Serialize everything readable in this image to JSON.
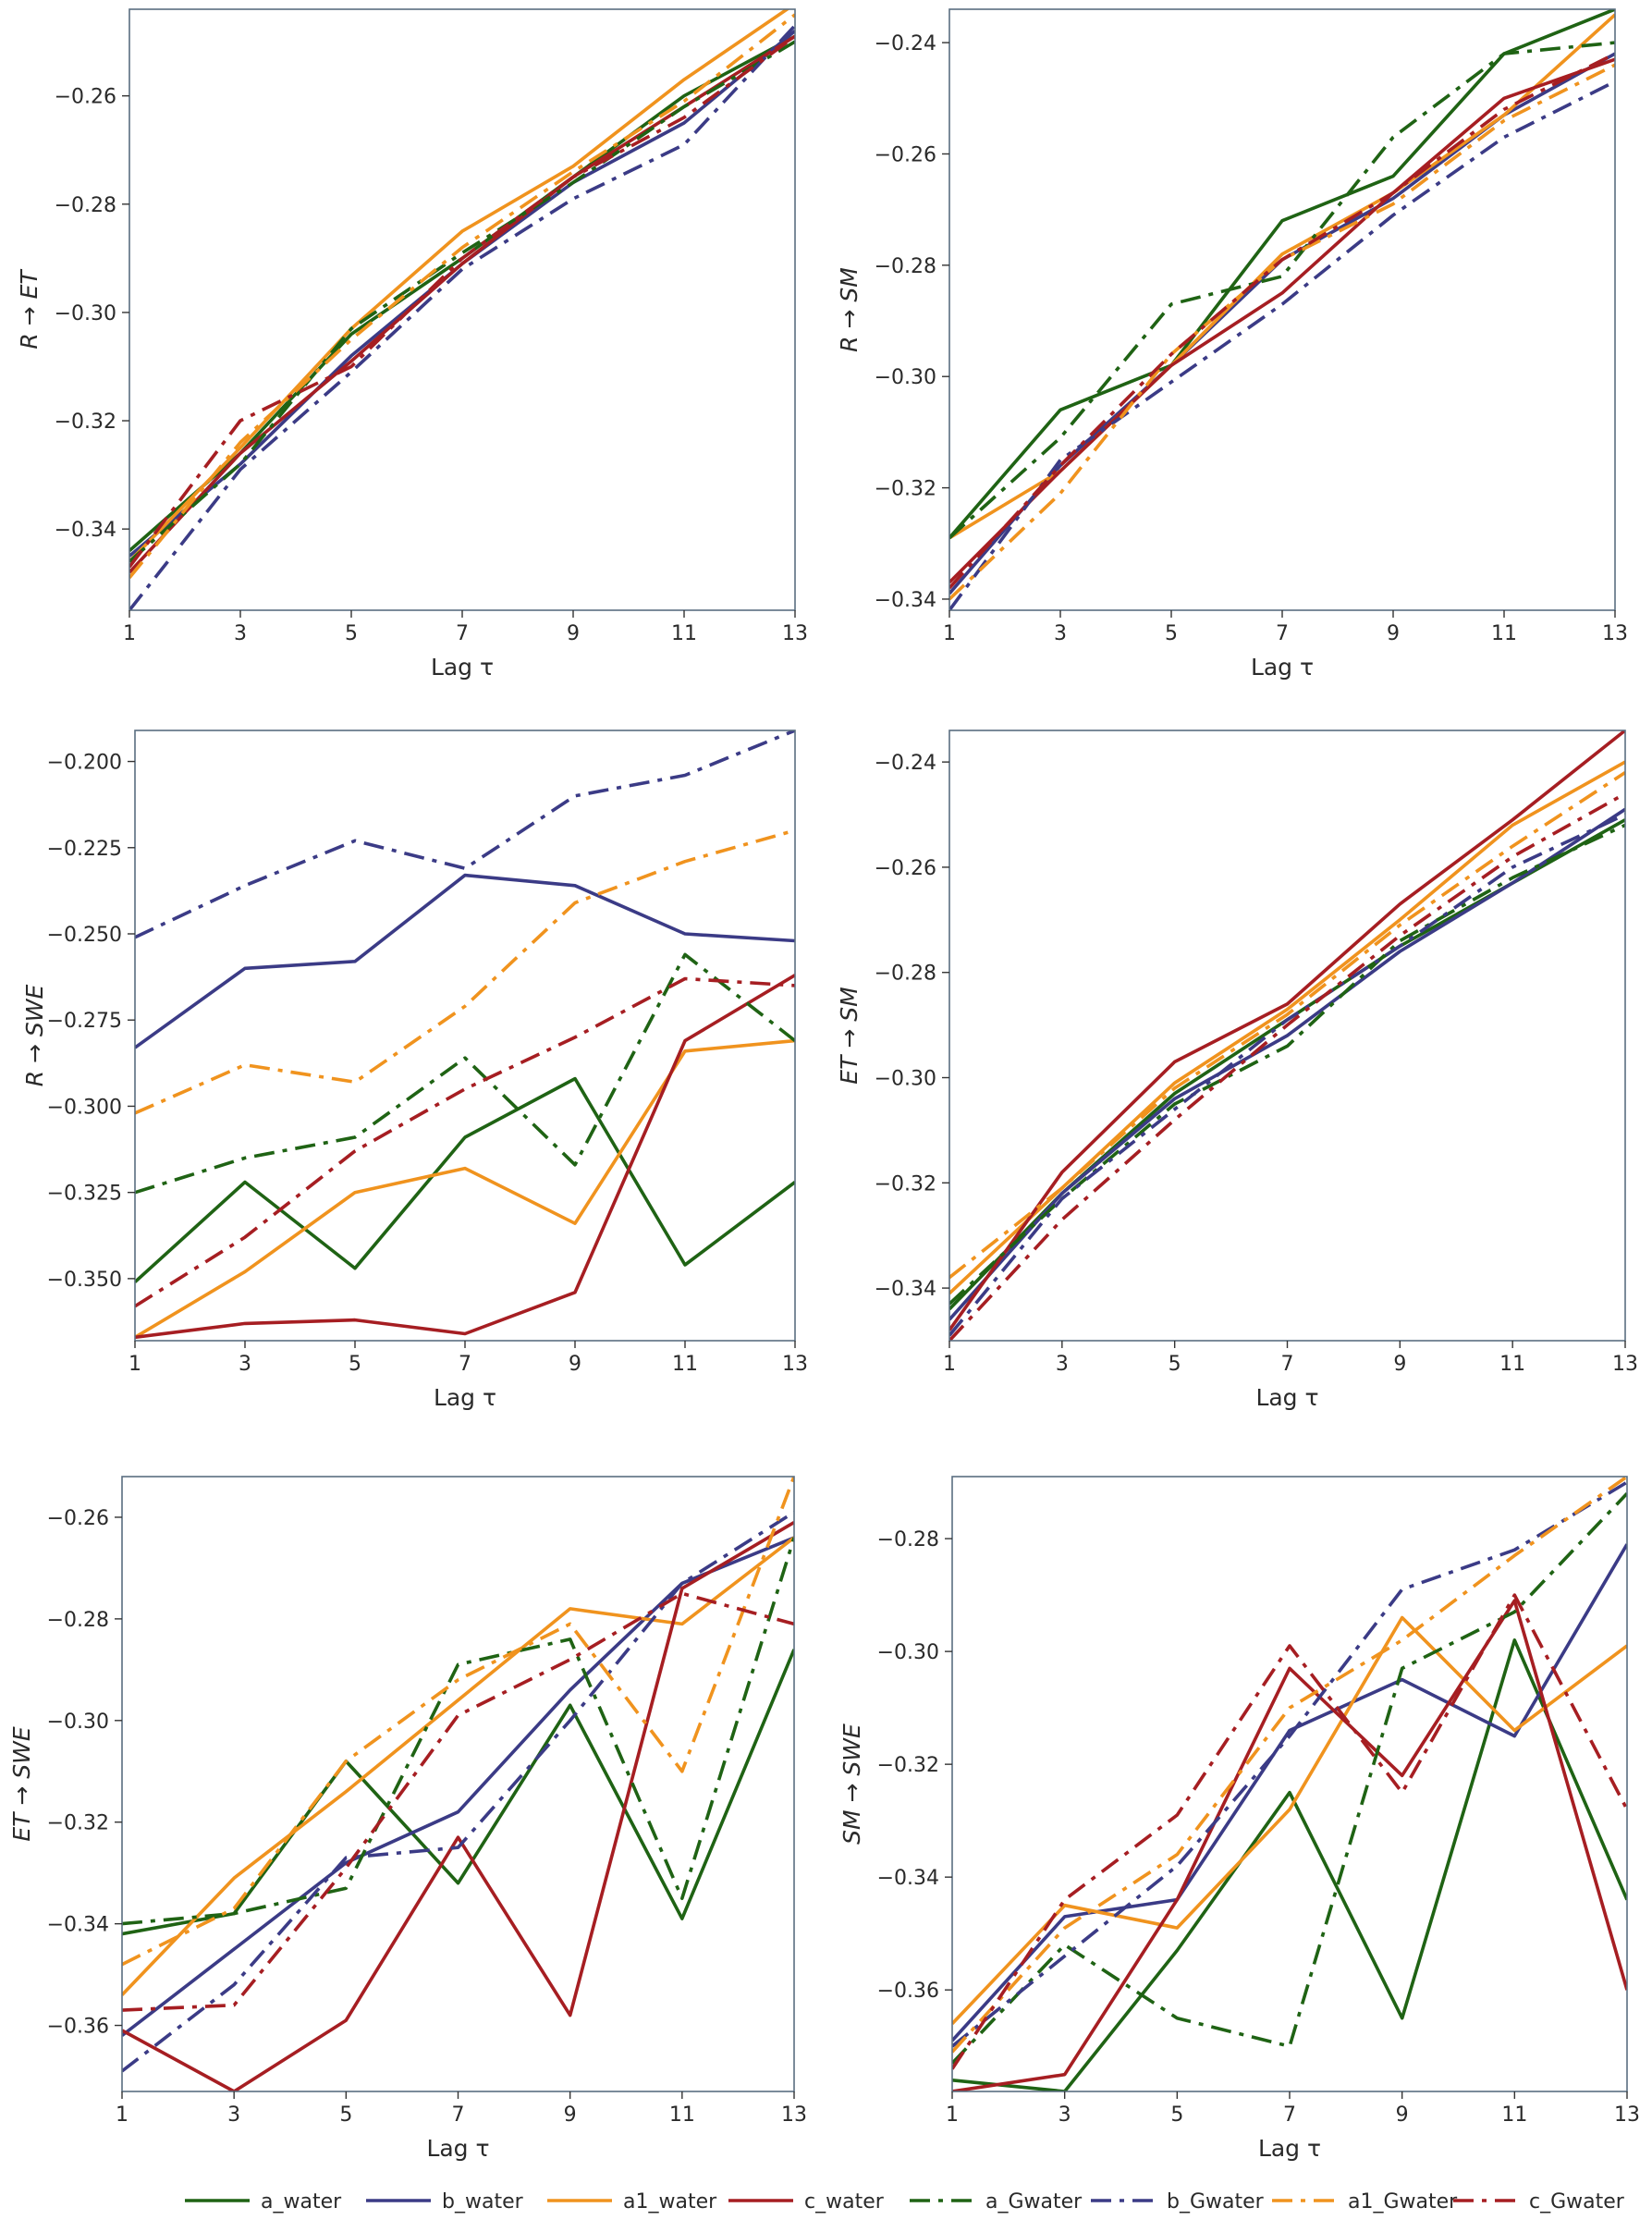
{
  "figure": {
    "legend": {
      "placement": "bottom",
      "entries": [
        {
          "key": "a_water",
          "label": "a_water",
          "color": "#1f6314",
          "dash": "solid"
        },
        {
          "key": "b_water",
          "label": "b_water",
          "color": "#3b3b86",
          "dash": "solid"
        },
        {
          "key": "a1_water",
          "label": "a1_water",
          "color": "#f0931e",
          "dash": "solid"
        },
        {
          "key": "c_water",
          "label": "c_water",
          "color": "#a61e22",
          "dash": "solid"
        },
        {
          "key": "a_Gwater",
          "label": "a_Gwater",
          "color": "#1f6314",
          "dash": "dashdot"
        },
        {
          "key": "b_Gwater",
          "label": "b_Gwater",
          "color": "#3b3b86",
          "dash": "dashdot"
        },
        {
          "key": "a1_Gwater",
          "label": "a1_Gwater",
          "color": "#f0931e",
          "dash": "dashdot"
        },
        {
          "key": "c_Gwater",
          "label": "c_Gwater",
          "color": "#a61e22",
          "dash": "dashdot"
        }
      ]
    }
  },
  "chart_data": [
    {
      "type": "line",
      "ylabel": "R → ET",
      "xlabel": "Lag τ",
      "x": [
        1,
        3,
        5,
        7,
        9,
        11,
        13
      ],
      "xlim": [
        1,
        13
      ],
      "ylim": [
        -0.355,
        -0.244
      ],
      "yticks": [
        -0.34,
        -0.32,
        -0.3,
        -0.28,
        -0.26
      ],
      "ytick_labels": [
        "−0.34",
        "−0.32",
        "−0.30",
        "−0.28",
        "−0.26"
      ],
      "series": [
        {
          "name": "a_water",
          "values": [
            -0.344,
            -0.326,
            -0.304,
            -0.29,
            -0.275,
            -0.26,
            -0.249
          ]
        },
        {
          "name": "b_water",
          "values": [
            -0.345,
            -0.328,
            -0.308,
            -0.291,
            -0.276,
            -0.265,
            -0.248
          ]
        },
        {
          "name": "a1_water",
          "values": [
            -0.346,
            -0.325,
            -0.303,
            -0.285,
            -0.273,
            -0.257,
            -0.243
          ]
        },
        {
          "name": "c_water",
          "values": [
            -0.348,
            -0.326,
            -0.309,
            -0.291,
            -0.275,
            -0.262,
            -0.249
          ]
        },
        {
          "name": "a_Gwater",
          "values": [
            -0.346,
            -0.328,
            -0.303,
            -0.289,
            -0.276,
            -0.262,
            -0.25
          ]
        },
        {
          "name": "b_Gwater",
          "values": [
            -0.355,
            -0.329,
            -0.311,
            -0.292,
            -0.279,
            -0.269,
            -0.247
          ]
        },
        {
          "name": "a1_Gwater",
          "values": [
            -0.349,
            -0.324,
            -0.305,
            -0.288,
            -0.274,
            -0.261,
            -0.245
          ]
        },
        {
          "name": "c_Gwater",
          "values": [
            -0.347,
            -0.32,
            -0.31,
            -0.29,
            -0.275,
            -0.264,
            -0.249
          ]
        }
      ]
    },
    {
      "type": "line",
      "ylabel": "R → SM",
      "xlabel": "Lag τ",
      "x": [
        1,
        3,
        5,
        7,
        9,
        11,
        13
      ],
      "xlim": [
        1,
        13
      ],
      "ylim": [
        -0.342,
        -0.234
      ],
      "yticks": [
        -0.34,
        -0.32,
        -0.3,
        -0.28,
        -0.26,
        -0.24
      ],
      "ytick_labels": [
        "−0.34",
        "−0.32",
        "−0.30",
        "−0.28",
        "−0.26",
        "−0.24"
      ],
      "series": [
        {
          "name": "a_water",
          "values": [
            -0.329,
            -0.306,
            -0.298,
            -0.272,
            -0.264,
            -0.242,
            -0.234
          ]
        },
        {
          "name": "b_water",
          "values": [
            -0.339,
            -0.316,
            -0.298,
            -0.279,
            -0.268,
            -0.253,
            -0.242
          ]
        },
        {
          "name": "a1_water",
          "values": [
            -0.329,
            -0.317,
            -0.298,
            -0.278,
            -0.267,
            -0.253,
            -0.235
          ]
        },
        {
          "name": "c_water",
          "values": [
            -0.337,
            -0.317,
            -0.298,
            -0.285,
            -0.267,
            -0.25,
            -0.243
          ]
        },
        {
          "name": "a_Gwater",
          "values": [
            -0.329,
            -0.311,
            -0.287,
            -0.282,
            -0.257,
            -0.242,
            -0.24
          ]
        },
        {
          "name": "b_Gwater",
          "values": [
            -0.342,
            -0.315,
            -0.301,
            -0.287,
            -0.271,
            -0.257,
            -0.247
          ]
        },
        {
          "name": "a1_Gwater",
          "values": [
            -0.34,
            -0.321,
            -0.296,
            -0.279,
            -0.269,
            -0.254,
            -0.244
          ]
        },
        {
          "name": "c_Gwater",
          "values": [
            -0.338,
            -0.316,
            -0.296,
            -0.279,
            -0.267,
            -0.252,
            -0.242
          ]
        }
      ]
    },
    {
      "type": "line",
      "ylabel": "R → SWE",
      "xlabel": "Lag τ",
      "x": [
        1,
        3,
        5,
        7,
        9,
        11,
        13
      ],
      "xlim": [
        1,
        13
      ],
      "ylim": [
        -0.368,
        -0.191
      ],
      "yticks": [
        -0.35,
        -0.325,
        -0.3,
        -0.275,
        -0.25,
        -0.225,
        -0.2
      ],
      "ytick_labels": [
        "−0.350",
        "−0.325",
        "−0.300",
        "−0.275",
        "−0.250",
        "−0.225",
        "−0.200"
      ],
      "series": [
        {
          "name": "a_water",
          "values": [
            -0.351,
            -0.322,
            -0.347,
            -0.309,
            -0.292,
            -0.346,
            -0.322
          ]
        },
        {
          "name": "b_water",
          "values": [
            -0.283,
            -0.26,
            -0.258,
            -0.233,
            -0.236,
            -0.25,
            -0.252
          ]
        },
        {
          "name": "a1_water",
          "values": [
            -0.367,
            -0.348,
            -0.325,
            -0.318,
            -0.334,
            -0.284,
            -0.281
          ]
        },
        {
          "name": "c_water",
          "values": [
            -0.367,
            -0.363,
            -0.362,
            -0.366,
            -0.354,
            -0.281,
            -0.262
          ]
        },
        {
          "name": "a_Gwater",
          "values": [
            -0.325,
            -0.315,
            -0.309,
            -0.286,
            -0.317,
            -0.256,
            -0.281
          ]
        },
        {
          "name": "b_Gwater",
          "values": [
            -0.251,
            -0.236,
            -0.223,
            -0.231,
            -0.21,
            -0.204,
            -0.191
          ]
        },
        {
          "name": "a1_Gwater",
          "values": [
            -0.302,
            -0.288,
            -0.293,
            -0.271,
            -0.241,
            -0.229,
            -0.22
          ]
        },
        {
          "name": "c_Gwater",
          "values": [
            -0.358,
            -0.338,
            -0.313,
            -0.295,
            -0.28,
            -0.263,
            -0.265
          ]
        }
      ]
    },
    {
      "type": "line",
      "ylabel": "ET → SM",
      "xlabel": "Lag τ",
      "x": [
        1,
        3,
        5,
        7,
        9,
        11,
        13
      ],
      "xlim": [
        1,
        13
      ],
      "ylim": [
        -0.35,
        -0.234
      ],
      "yticks": [
        -0.34,
        -0.32,
        -0.3,
        -0.28,
        -0.26,
        -0.24
      ],
      "ytick_labels": [
        "−0.34",
        "−0.32",
        "−0.30",
        "−0.28",
        "−0.26",
        "−0.24"
      ],
      "series": [
        {
          "name": "a_water",
          "values": [
            -0.344,
            -0.322,
            -0.303,
            -0.289,
            -0.275,
            -0.263,
            -0.251
          ]
        },
        {
          "name": "b_water",
          "values": [
            -0.346,
            -0.322,
            -0.304,
            -0.292,
            -0.276,
            -0.263,
            -0.249
          ]
        },
        {
          "name": "a1_water",
          "values": [
            -0.341,
            -0.321,
            -0.301,
            -0.287,
            -0.27,
            -0.252,
            -0.24
          ]
        },
        {
          "name": "c_water",
          "values": [
            -0.348,
            -0.318,
            -0.297,
            -0.286,
            -0.267,
            -0.251,
            -0.234
          ]
        },
        {
          "name": "a_Gwater",
          "values": [
            -0.343,
            -0.323,
            -0.305,
            -0.294,
            -0.274,
            -0.262,
            -0.252
          ]
        },
        {
          "name": "b_Gwater",
          "values": [
            -0.349,
            -0.323,
            -0.306,
            -0.289,
            -0.275,
            -0.26,
            -0.25
          ]
        },
        {
          "name": "a1_Gwater",
          "values": [
            -0.338,
            -0.321,
            -0.302,
            -0.288,
            -0.271,
            -0.256,
            -0.242
          ]
        },
        {
          "name": "c_Gwater",
          "values": [
            -0.35,
            -0.327,
            -0.308,
            -0.29,
            -0.273,
            -0.258,
            -0.246
          ]
        }
      ]
    },
    {
      "type": "line",
      "ylabel": "ET → SWE",
      "xlabel": "Lag τ",
      "x": [
        1,
        3,
        5,
        7,
        9,
        11,
        13
      ],
      "xlim": [
        1,
        13
      ],
      "ylim": [
        -0.373,
        -0.252
      ],
      "yticks": [
        -0.36,
        -0.34,
        -0.32,
        -0.3,
        -0.28,
        -0.26
      ],
      "ytick_labels": [
        "−0.36",
        "−0.34",
        "−0.32",
        "−0.30",
        "−0.28",
        "−0.26"
      ],
      "series": [
        {
          "name": "a_water",
          "values": [
            -0.342,
            -0.338,
            -0.308,
            -0.332,
            -0.297,
            -0.339,
            -0.286
          ]
        },
        {
          "name": "b_water",
          "values": [
            -0.362,
            -0.345,
            -0.328,
            -0.318,
            -0.294,
            -0.273,
            -0.264
          ]
        },
        {
          "name": "a1_water",
          "values": [
            -0.354,
            -0.331,
            -0.314,
            -0.296,
            -0.278,
            -0.281,
            -0.264
          ]
        },
        {
          "name": "c_water",
          "values": [
            -0.361,
            -0.373,
            -0.359,
            -0.323,
            -0.358,
            -0.274,
            -0.261
          ]
        },
        {
          "name": "a_Gwater",
          "values": [
            -0.34,
            -0.338,
            -0.333,
            -0.289,
            -0.284,
            -0.335,
            -0.264
          ]
        },
        {
          "name": "b_Gwater",
          "values": [
            -0.369,
            -0.352,
            -0.327,
            -0.325,
            -0.3,
            -0.273,
            -0.259
          ]
        },
        {
          "name": "a1_Gwater",
          "values": [
            -0.348,
            -0.337,
            -0.308,
            -0.292,
            -0.281,
            -0.31,
            -0.252
          ]
        },
        {
          "name": "c_Gwater",
          "values": [
            -0.357,
            -0.356,
            -0.329,
            -0.299,
            -0.288,
            -0.275,
            -0.281
          ]
        }
      ]
    },
    {
      "type": "line",
      "ylabel": "SM → SWE",
      "xlabel": "Lag τ",
      "x": [
        1,
        3,
        5,
        7,
        9,
        11,
        13
      ],
      "xlim": [
        1,
        13
      ],
      "ylim": [
        -0.378,
        -0.269
      ],
      "yticks": [
        -0.36,
        -0.34,
        -0.32,
        -0.3,
        -0.28
      ],
      "ytick_labels": [
        "−0.36",
        "−0.34",
        "−0.32",
        "−0.30",
        "−0.28"
      ],
      "series": [
        {
          "name": "a_water",
          "values": [
            -0.376,
            -0.378,
            -0.353,
            -0.325,
            -0.365,
            -0.298,
            -0.344
          ]
        },
        {
          "name": "b_water",
          "values": [
            -0.369,
            -0.347,
            -0.344,
            -0.314,
            -0.305,
            -0.315,
            -0.281
          ]
        },
        {
          "name": "a1_water",
          "values": [
            -0.366,
            -0.345,
            -0.349,
            -0.328,
            -0.294,
            -0.314,
            -0.299
          ]
        },
        {
          "name": "c_water",
          "values": [
            -0.378,
            -0.375,
            -0.344,
            -0.303,
            -0.322,
            -0.291,
            -0.36
          ]
        },
        {
          "name": "a_Gwater",
          "values": [
            -0.373,
            -0.352,
            -0.365,
            -0.37,
            -0.303,
            -0.293,
            -0.272
          ]
        },
        {
          "name": "b_Gwater",
          "values": [
            -0.37,
            -0.354,
            -0.338,
            -0.315,
            -0.289,
            -0.282,
            -0.27
          ]
        },
        {
          "name": "a1_Gwater",
          "values": [
            -0.371,
            -0.349,
            -0.336,
            -0.31,
            -0.298,
            -0.283,
            -0.269
          ]
        },
        {
          "name": "c_Gwater",
          "values": [
            -0.374,
            -0.344,
            -0.329,
            -0.299,
            -0.325,
            -0.29,
            -0.328
          ]
        }
      ]
    }
  ]
}
